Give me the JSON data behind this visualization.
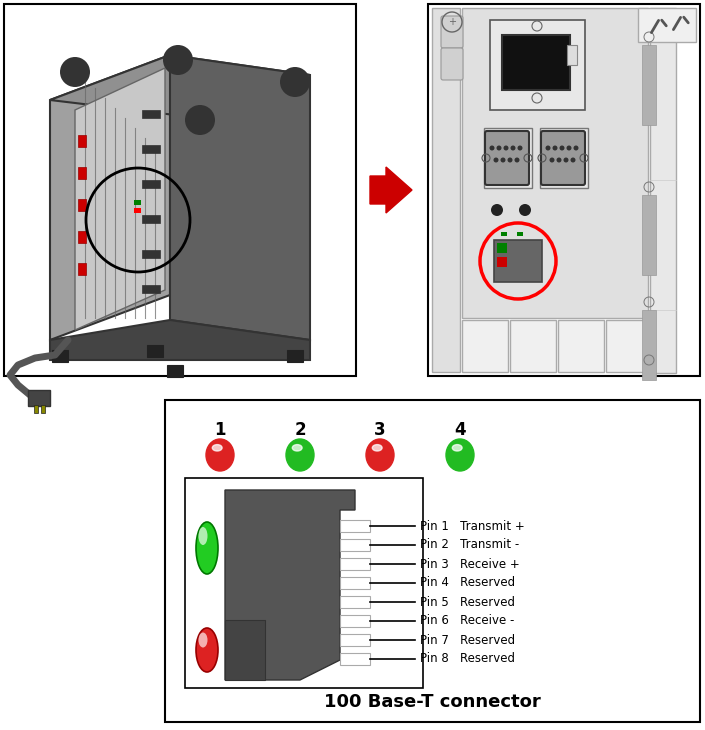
{
  "bg_color": "#ffffff",
  "led_labels": [
    "1",
    "2",
    "3",
    "4"
  ],
  "led_colors": [
    "#dd2222",
    "#22bb22",
    "#dd2222",
    "#22bb22"
  ],
  "pin_labels": [
    "Pin 1",
    "Pin 2",
    "Pin 3",
    "Pin 4",
    "Pin 5",
    "Pin 6",
    "Pin 7",
    "Pin 8"
  ],
  "pin_descriptions": [
    "Transmit +",
    "Transmit -",
    "Receive +",
    "Reserved",
    "Reserved",
    "Receive -",
    "Reserved",
    "Reserved"
  ],
  "connector_box_label": "100 Base-T connector",
  "arrow_color": "#cc0000",
  "dark_grey": "#555555",
  "mid_grey": "#888888",
  "light_grey": "#cccccc",
  "panel_grey": "#d8d8d8",
  "slot_grey": "#bbbbbb"
}
